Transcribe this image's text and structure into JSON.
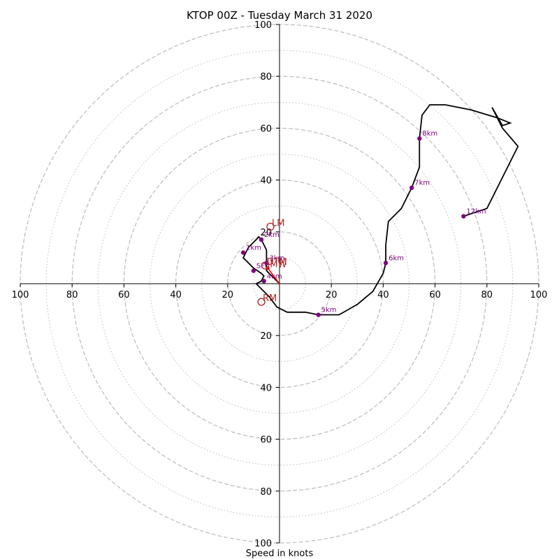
{
  "chart_data": {
    "type": "line",
    "title": "KTOP 00Z - Tuesday March 31 2020",
    "xlabel": "Speed in knots",
    "ylabel": "",
    "range": 100,
    "ring_major": [
      20,
      40,
      60,
      80,
      100
    ],
    "ring_minor": [
      10,
      30,
      50,
      70,
      90
    ],
    "tick_labels": [
      "20",
      "40",
      "60",
      "80",
      "100"
    ],
    "line_color": "#000000",
    "marker_color": "#800080",
    "motion_color": "#b22222",
    "grid_color": "#bbbbbb",
    "hodograph": [
      [
        0,
        0
      ],
      [
        -1,
        1
      ],
      [
        -3,
        3
      ],
      [
        -5,
        5
      ],
      [
        -5,
        8
      ],
      [
        -5,
        11
      ],
      [
        -5,
        13
      ],
      [
        -6,
        15
      ],
      [
        -7,
        17
      ],
      [
        -8,
        18
      ],
      [
        -10,
        16
      ],
      [
        -12,
        14
      ],
      [
        -13,
        12
      ],
      [
        -14,
        10
      ],
      [
        -12,
        8
      ],
      [
        -10,
        6
      ],
      [
        -7,
        4
      ],
      [
        -6,
        3
      ],
      [
        -7,
        1
      ],
      [
        -9,
        0
      ],
      [
        -7,
        -2
      ],
      [
        -4,
        -5
      ],
      [
        -1,
        -9
      ],
      [
        3,
        -11
      ],
      [
        10,
        -11
      ],
      [
        15,
        -12
      ],
      [
        23,
        -12
      ],
      [
        30,
        -8
      ],
      [
        36,
        -3
      ],
      [
        40,
        4
      ],
      [
        41,
        8
      ],
      [
        41,
        15
      ],
      [
        42,
        24
      ],
      [
        47,
        29
      ],
      [
        51,
        37
      ],
      [
        54,
        45
      ],
      [
        54,
        56
      ],
      [
        55,
        65
      ],
      [
        58,
        69
      ],
      [
        64,
        69
      ],
      [
        74,
        67
      ],
      [
        84,
        64
      ],
      [
        89,
        62
      ],
      [
        86,
        61
      ],
      [
        82,
        68
      ],
      [
        86,
        60
      ],
      [
        92,
        53
      ],
      [
        86,
        41
      ],
      [
        80,
        29
      ],
      [
        74,
        27
      ],
      [
        71,
        26
      ]
    ],
    "height_markers": [
      {
        "label": "SFC",
        "u": -10,
        "v": 5
      },
      {
        "label": "1km",
        "u": -14,
        "v": 12
      },
      {
        "label": "2km",
        "u": -7,
        "v": 17
      },
      {
        "label": "3km",
        "u": -5,
        "v": 8
      },
      {
        "label": "4km",
        "u": -6,
        "v": 1
      },
      {
        "label": "5km",
        "u": 15,
        "v": -12
      },
      {
        "label": "6km",
        "u": 41,
        "v": 8
      },
      {
        "label": "7km",
        "u": 51,
        "v": 37
      },
      {
        "label": "8km",
        "u": 54,
        "v": 56
      },
      {
        "label": "12km",
        "u": 71,
        "v": 26
      }
    ],
    "storm_motions": [
      {
        "label": "LM",
        "u": -3.5,
        "v": 22
      },
      {
        "label": "RM",
        "u": -7,
        "v": -7
      },
      {
        "label": "MW",
        "u": -4.5,
        "v": 6
      },
      {
        "label": "DTM",
        "u": -5.5,
        "v": 7
      }
    ]
  }
}
